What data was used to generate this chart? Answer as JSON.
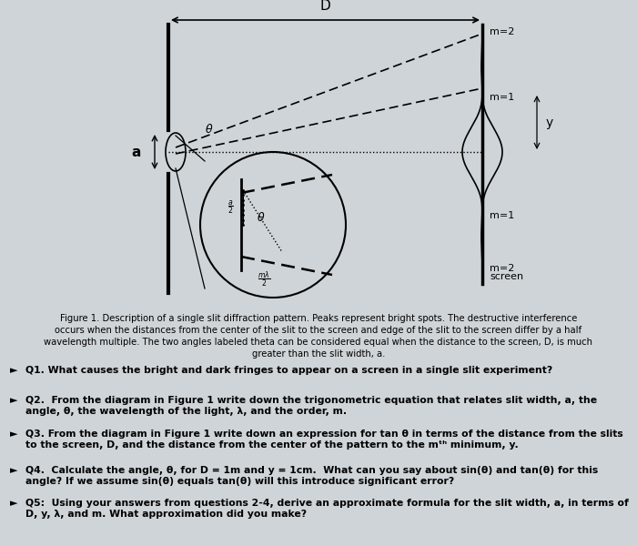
{
  "bg_color": "#cfd4d8",
  "figure1_caption": "Figure 1. Description of a single slit diffraction pattern. Peaks represent bright spots. The destructive interference\noccurs when the distances from the center of the slit to the screen and edge of the slit to the screen differ by a half\nwavelength multiple. The two angles labeled theta can be considered equal when the distance to the screen, D, is much\ngreater than the slit width, a.",
  "q1": "Q1. What causes the bright and dark fringes to appear on a screen in a single slit experiment?",
  "q2": "Q2.  From the diagram in Figure 1 write down the trigonometric equation that relates slit width, a, the\nangle, θ, the wavelength of the light, λ, and the order, m.",
  "q3": "Q3. From the diagram in Figure 1 write down an expression for tan θ in terms of the distance from the slits\nto the screen, D, and the distance from the center of the pattern to the mᵗʰ minimum, y.",
  "q4": "Q4.  Calculate the angle, θ, for D = 1m and y = 1cm.  What can you say about sin(θ) and tan(θ) for this\nangle? If we assume sin(θ) equals tan(θ) will this introduce significant error?",
  "q5": "Q5:  Using your answers from questions 2-4, derive an approximate formula for the slit width, a, in terms of\nD, y, λ, and m. What approximation did you make?"
}
